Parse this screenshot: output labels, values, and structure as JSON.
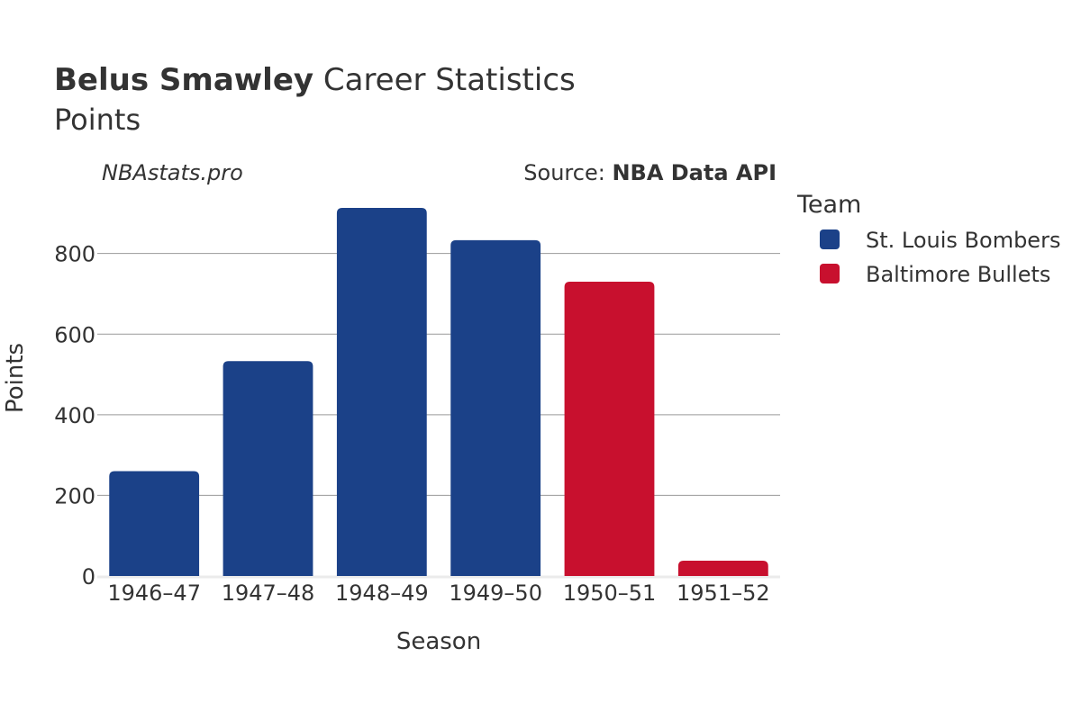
{
  "header": {
    "player_name": "Belus Smawley",
    "title_rest": " Career Statistics",
    "subtitle": "Points"
  },
  "watermark": "NBAstats.pro",
  "source": {
    "prefix": "Source: ",
    "name": "NBA Data API"
  },
  "legend": {
    "title": "Team"
  },
  "colors": {
    "St. Louis Bombers": "#1b4188",
    "Baltimore Bullets": "#c8102e"
  },
  "chart_data": {
    "type": "bar",
    "categories": [
      "1946–47",
      "1947–48",
      "1948–49",
      "1949–50",
      "1950–51",
      "1951–52"
    ],
    "series": [
      {
        "name": "St. Louis Bombers",
        "values": [
          260,
          533,
          913,
          833,
          null,
          null
        ]
      },
      {
        "name": "Baltimore Bullets",
        "values": [
          null,
          null,
          null,
          null,
          730,
          38
        ]
      }
    ],
    "xlabel": "Season",
    "ylabel": "Points",
    "yticks": [
      0,
      200,
      400,
      600,
      800
    ],
    "ylim": [
      0,
      960
    ],
    "grid": true,
    "legend_position": "right"
  }
}
